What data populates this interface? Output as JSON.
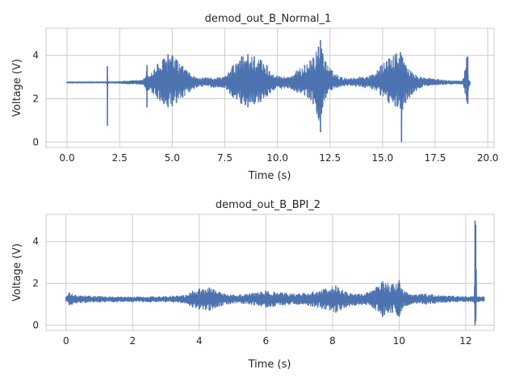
{
  "chart_data": [
    {
      "type": "line",
      "title": "demod_out_B_Normal_1",
      "xlabel": "Time (s)",
      "ylabel": "Voltage (V)",
      "xlim": [
        -1.0,
        20.3
      ],
      "ylim": [
        -0.25,
        5.25
      ],
      "xticks": [
        0.0,
        2.5,
        5.0,
        7.5,
        10.0,
        12.5,
        15.0,
        17.5,
        20.0
      ],
      "xtick_labels": [
        "0.0",
        "2.5",
        "5.0",
        "7.5",
        "10.0",
        "12.5",
        "15.0",
        "17.5",
        "20.0"
      ],
      "yticks": [
        0,
        2,
        4
      ],
      "ytick_labels": [
        "0",
        "2",
        "4"
      ],
      "grid": true,
      "color": "#4c72b0",
      "baseline": 2.75,
      "x": [
        0.0,
        1.9,
        1.92,
        1.94,
        1.96,
        2.0,
        3.5,
        3.7,
        3.75,
        3.8,
        3.85,
        4.3,
        4.6,
        4.8,
        5.0,
        5.2,
        5.5,
        5.8,
        6.2,
        7.5,
        7.9,
        8.3,
        8.6,
        8.9,
        9.2,
        9.5,
        9.8,
        10.5,
        11.3,
        11.7,
        11.95,
        12.05,
        12.1,
        12.15,
        12.3,
        12.6,
        13.0,
        13.5,
        14.5,
        14.9,
        15.3,
        15.6,
        15.85,
        15.9,
        15.95,
        16.1,
        16.4,
        16.8,
        17.2,
        18.0,
        18.8,
        19.0,
        19.05,
        19.1,
        19.15
      ],
      "upper": [
        2.78,
        2.78,
        3.5,
        2.78,
        2.8,
        2.78,
        2.85,
        2.95,
        3.0,
        3.55,
        3.05,
        3.6,
        3.85,
        4.05,
        4.0,
        3.8,
        3.5,
        3.2,
        2.95,
        3.0,
        3.55,
        3.95,
        4.05,
        3.95,
        3.8,
        3.55,
        3.1,
        3.0,
        3.55,
        3.9,
        4.4,
        4.7,
        4.3,
        4.1,
        3.7,
        3.3,
        3.0,
        2.95,
        3.1,
        3.5,
        3.85,
        4.05,
        4.15,
        4.0,
        3.9,
        3.55,
        3.2,
        3.0,
        2.95,
        2.85,
        2.82,
        3.9,
        3.95,
        2.85,
        2.8
      ],
      "lower": [
        2.72,
        2.72,
        0.75,
        2.72,
        2.7,
        2.72,
        2.65,
        2.55,
        2.5,
        1.6,
        2.4,
        2.0,
        1.75,
        1.6,
        1.65,
        1.8,
        2.05,
        2.3,
        2.55,
        2.5,
        2.05,
        1.75,
        1.6,
        1.75,
        1.85,
        2.1,
        2.4,
        2.5,
        2.15,
        1.75,
        1.1,
        0.45,
        1.3,
        1.6,
        2.05,
        2.4,
        2.55,
        2.6,
        2.45,
        2.15,
        1.8,
        1.65,
        1.55,
        0.0,
        1.5,
        1.8,
        2.2,
        2.5,
        2.6,
        2.65,
        2.68,
        1.9,
        1.75,
        2.55,
        2.65
      ]
    },
    {
      "type": "line",
      "title": "demod_out_B_BPI_2",
      "xlabel": "Time (s)",
      "ylabel": "Voltage (V)",
      "xlim": [
        -0.6,
        12.85
      ],
      "ylim": [
        -0.25,
        5.3
      ],
      "xticks": [
        0,
        2,
        4,
        6,
        8,
        10,
        12
      ],
      "xtick_labels": [
        "0",
        "2",
        "4",
        "6",
        "8",
        "10",
        "12"
      ],
      "yticks": [
        0,
        2,
        4
      ],
      "ytick_labels": [
        "0",
        "2",
        "4"
      ],
      "grid": true,
      "color": "#4c72b0",
      "baseline": 1.25,
      "x": [
        0.0,
        0.1,
        0.3,
        1.0,
        2.0,
        3.0,
        3.6,
        3.8,
        4.0,
        4.3,
        4.6,
        5.0,
        5.5,
        6.0,
        6.5,
        7.0,
        7.4,
        7.8,
        8.1,
        8.4,
        8.8,
        9.2,
        9.5,
        9.8,
        10.0,
        10.1,
        10.4,
        10.8,
        11.4,
        12.0,
        12.25,
        12.28,
        12.3,
        12.33,
        12.4,
        12.55
      ],
      "upper": [
        1.35,
        1.55,
        1.42,
        1.38,
        1.35,
        1.38,
        1.45,
        1.65,
        1.75,
        1.8,
        1.6,
        1.45,
        1.5,
        1.65,
        1.55,
        1.5,
        1.6,
        1.75,
        1.9,
        1.6,
        1.5,
        1.65,
        2.1,
        1.95,
        2.15,
        1.7,
        1.45,
        1.5,
        1.4,
        1.38,
        1.38,
        5.0,
        4.8,
        1.4,
        1.38,
        1.35
      ],
      "lower": [
        1.15,
        0.95,
        1.05,
        1.1,
        1.12,
        1.1,
        1.05,
        0.85,
        0.75,
        0.7,
        0.9,
        1.05,
        1.0,
        0.85,
        0.95,
        1.0,
        0.9,
        0.75,
        0.6,
        0.85,
        1.0,
        0.85,
        0.4,
        0.6,
        0.4,
        0.8,
        1.05,
        1.0,
        1.1,
        1.12,
        1.12,
        0.0,
        0.2,
        1.1,
        1.12,
        1.15
      ]
    }
  ]
}
